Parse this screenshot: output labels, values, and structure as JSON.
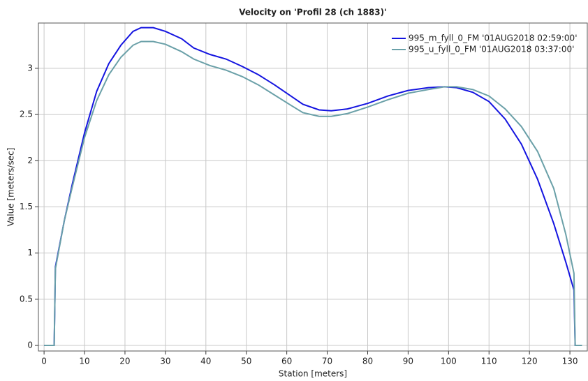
{
  "chart_data": {
    "type": "line",
    "title": "Velocity on 'Profil 28 (ch 1883)'",
    "xlabel": "Station [meters]",
    "ylabel": "Value [meters/sec]",
    "x": [
      0,
      2.5,
      2.8,
      5,
      7,
      10,
      13,
      16,
      19,
      22,
      24,
      27,
      30,
      34,
      37,
      41,
      45,
      49,
      53,
      57,
      61,
      64,
      68,
      71,
      75,
      80,
      85,
      90,
      95,
      99,
      102,
      106,
      110,
      114,
      118,
      122,
      126,
      129,
      131,
      131.3,
      133
    ],
    "series": [
      {
        "name": "995_m_fyll_0_FM '01AUG2018 02:59:00'",
        "color": "#1414e0",
        "values": [
          0,
          0,
          0.85,
          1.35,
          1.75,
          2.3,
          2.75,
          3.05,
          3.25,
          3.4,
          3.44,
          3.44,
          3.4,
          3.32,
          3.22,
          3.15,
          3.1,
          3.02,
          2.93,
          2.82,
          2.7,
          2.61,
          2.55,
          2.54,
          2.56,
          2.62,
          2.7,
          2.76,
          2.79,
          2.8,
          2.79,
          2.74,
          2.64,
          2.45,
          2.18,
          1.8,
          1.32,
          0.9,
          0.6,
          0,
          0
        ]
      },
      {
        "name": "995_u_fyll_0_FM '01AUG2018 03:37:00'",
        "color": "#6aa0a8",
        "values": [
          0,
          0,
          0.83,
          1.35,
          1.72,
          2.25,
          2.65,
          2.93,
          3.12,
          3.25,
          3.29,
          3.29,
          3.26,
          3.18,
          3.1,
          3.03,
          2.98,
          2.91,
          2.82,
          2.71,
          2.6,
          2.52,
          2.48,
          2.48,
          2.51,
          2.58,
          2.66,
          2.73,
          2.77,
          2.8,
          2.8,
          2.77,
          2.7,
          2.56,
          2.37,
          2.1,
          1.7,
          1.2,
          0.78,
          0,
          0
        ]
      }
    ],
    "xlim": [
      -1.4,
      134.3
    ],
    "ylim": [
      -0.06,
      3.49
    ],
    "xticks": [
      0,
      10,
      20,
      30,
      40,
      50,
      60,
      70,
      80,
      90,
      100,
      110,
      120,
      130
    ],
    "yticks": [
      0,
      0.5,
      1,
      1.5,
      2,
      2.5,
      3
    ],
    "grid": true,
    "legend": "upper right"
  }
}
